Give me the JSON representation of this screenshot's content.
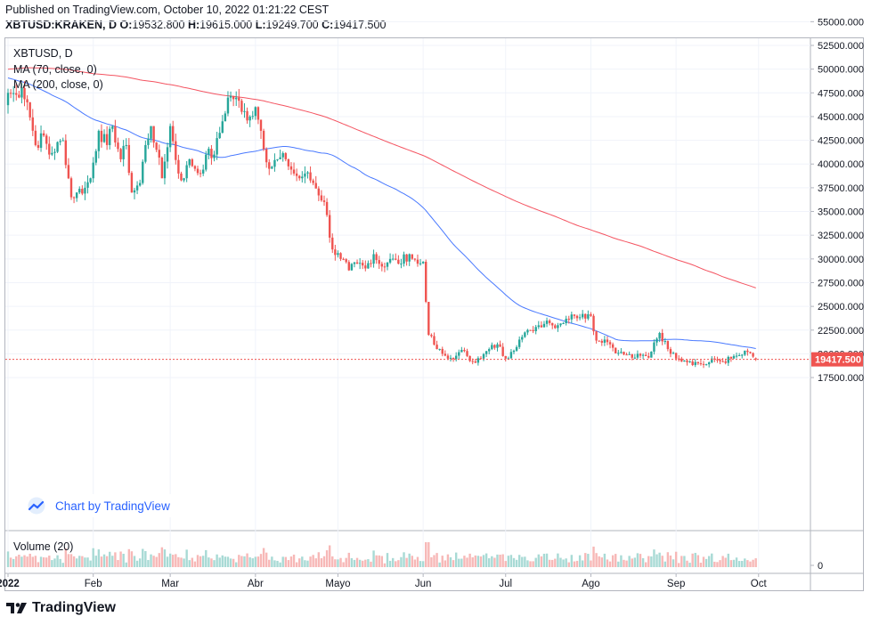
{
  "header": {
    "published": "Published on TradingView.com, October 10, 2022 01:21:22 CEST",
    "symbol": "XBTUSD:KRAKEN, D",
    "o_label": "O:",
    "o": "19532.800",
    "h_label": "H:",
    "h": "19615.000",
    "l_label": "L:",
    "l": "19249.700",
    "c_label": "C:",
    "c": "19417.500"
  },
  "legend": {
    "title": "XBTUSD, D",
    "ma70": "MA (70, close, 0)",
    "ma200": "MA (200, close, 0)"
  },
  "badge": {
    "text": "Chart by TradingView",
    "icon": "tradingview-cloud-icon"
  },
  "volume_label": "Volume (20)",
  "brand": {
    "text": "TradingView",
    "icon": "tv-logo-icon"
  },
  "colors": {
    "up": "#26a69a",
    "down": "#ef5350",
    "ma70": "#2962ff",
    "ma200": "#f23645",
    "last": "#ef5350"
  },
  "chart_data": {
    "type": "candlestick",
    "title": "XBTUSD, D",
    "y_ticks": [
      "55000.000",
      "52500.000",
      "50000.000",
      "47500.000",
      "45000.000",
      "42500.000",
      "40000.000",
      "37500.000",
      "35000.000",
      "32500.000",
      "30000.000",
      "27500.000",
      "25000.000",
      "22500.000",
      "20000.000",
      "17500.000"
    ],
    "y_range": [
      16000,
      56500
    ],
    "x_labels": [
      "2022",
      "Feb",
      "Mar",
      "Abr",
      "Mayo",
      "Jun",
      "Jul",
      "Ago",
      "Sep",
      "Oct"
    ],
    "x_label_days": [
      0,
      31,
      59,
      90,
      120,
      151,
      181,
      212,
      243,
      273
    ],
    "last_price": 19417.5,
    "last_price_label": "19417.500",
    "volume_axis_label": "0",
    "close_anchors": [
      [
        0,
        47500
      ],
      [
        3,
        47300
      ],
      [
        5,
        48000
      ],
      [
        7,
        46500
      ],
      [
        10,
        42000
      ],
      [
        13,
        43000
      ],
      [
        15,
        41000
      ],
      [
        20,
        42500
      ],
      [
        23,
        36500
      ],
      [
        25,
        37000
      ],
      [
        28,
        37500
      ],
      [
        30,
        38500
      ],
      [
        33,
        43500
      ],
      [
        36,
        42000
      ],
      [
        38,
        44000
      ],
      [
        41,
        40500
      ],
      [
        43,
        42000
      ],
      [
        45,
        37000
      ],
      [
        48,
        38000
      ],
      [
        50,
        42000
      ],
      [
        52,
        44000
      ],
      [
        54,
        41500
      ],
      [
        56,
        38500
      ],
      [
        59,
        44000
      ],
      [
        62,
        39000
      ],
      [
        64,
        38500
      ],
      [
        66,
        40500
      ],
      [
        68,
        39500
      ],
      [
        70,
        39000
      ],
      [
        72,
        41000
      ],
      [
        75,
        41000
      ],
      [
        78,
        44500
      ],
      [
        80,
        47000
      ],
      [
        83,
        47000
      ],
      [
        85,
        45500
      ],
      [
        88,
        45000
      ],
      [
        90,
        46000
      ],
      [
        92,
        43500
      ],
      [
        95,
        39500
      ],
      [
        98,
        40500
      ],
      [
        101,
        40500
      ],
      [
        104,
        39000
      ],
      [
        106,
        38500
      ],
      [
        108,
        39000
      ],
      [
        111,
        38000
      ],
      [
        115,
        36000
      ],
      [
        118,
        31000
      ],
      [
        121,
        30000
      ],
      [
        124,
        28800
      ],
      [
        127,
        29500
      ],
      [
        130,
        29000
      ],
      [
        133,
        30500
      ],
      [
        136,
        29200
      ],
      [
        139,
        30000
      ],
      [
        142,
        29500
      ],
      [
        146,
        30500
      ],
      [
        149,
        29500
      ],
      [
        151,
        29700
      ],
      [
        153,
        22000
      ],
      [
        156,
        20500
      ],
      [
        158,
        20000
      ],
      [
        160,
        19500
      ],
      [
        163,
        19800
      ],
      [
        166,
        20300
      ],
      [
        169,
        19200
      ],
      [
        172,
        19500
      ],
      [
        175,
        20500
      ],
      [
        178,
        21000
      ],
      [
        181,
        19500
      ],
      [
        183,
        20200
      ],
      [
        186,
        21500
      ],
      [
        190,
        22500
      ],
      [
        193,
        23000
      ],
      [
        196,
        23500
      ],
      [
        198,
        23000
      ],
      [
        201,
        23200
      ],
      [
        203,
        23700
      ],
      [
        206,
        24000
      ],
      [
        209,
        24200
      ],
      [
        212,
        24000
      ],
      [
        214,
        21400
      ],
      [
        217,
        21500
      ],
      [
        219,
        21000
      ],
      [
        222,
        20100
      ],
      [
        225,
        19900
      ],
      [
        228,
        19600
      ],
      [
        230,
        19800
      ],
      [
        233,
        19600
      ],
      [
        235,
        21200
      ],
      [
        237,
        22200
      ],
      [
        240,
        20500
      ],
      [
        242,
        20100
      ],
      [
        244,
        19500
      ],
      [
        246,
        19300
      ],
      [
        248,
        19200
      ],
      [
        251,
        19000
      ],
      [
        254,
        18900
      ],
      [
        257,
        19400
      ],
      [
        260,
        19200
      ],
      [
        263,
        19500
      ],
      [
        265,
        19800
      ],
      [
        267,
        19900
      ],
      [
        269,
        20200
      ],
      [
        271,
        19700
      ],
      [
        272,
        19417.5
      ]
    ]
  }
}
